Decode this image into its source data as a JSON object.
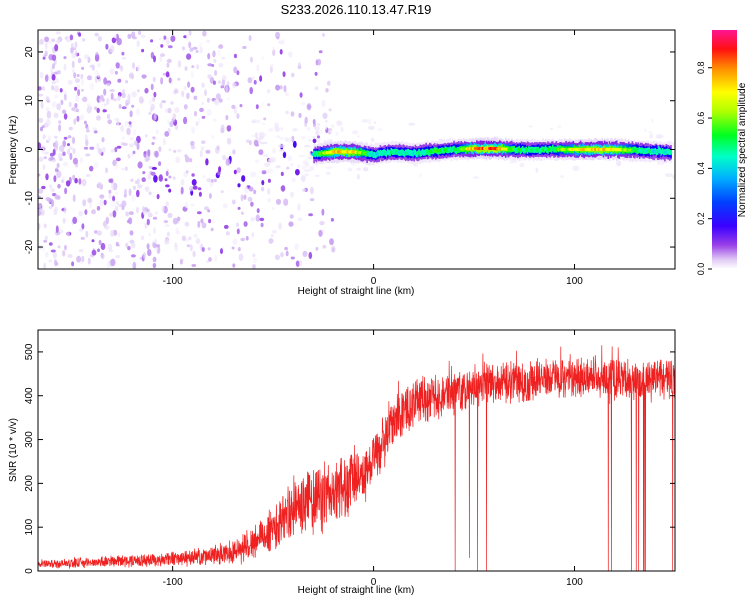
{
  "title": "S233.2026.110.13.47.R19",
  "chart_data": [
    {
      "type": "heatmap",
      "xlabel": "Height of straight line (km)",
      "ylabel": "Frequency (Hz)",
      "xlim": [
        -167,
        150
      ],
      "ylim": [
        -24.5,
        24.5
      ],
      "x_ticks": [
        -100,
        0,
        100
      ],
      "y_ticks": [
        -20,
        -10,
        0,
        10,
        20
      ],
      "grid": false,
      "colorbar": {
        "label": "Normalized spectral amplitude",
        "range": [
          0,
          0.95
        ],
        "ticks": [
          0.0,
          0.2,
          0.4,
          0.6,
          0.8
        ],
        "colormap": [
          "#ffffff",
          "#dcc8f5",
          "#8a2be2",
          "#3b00ff",
          "#0000ff",
          "#00bfff",
          "#00ffc0",
          "#00ff00",
          "#c8ff00",
          "#ffff00",
          "#ff8c00",
          "#ff0000",
          "#ff1493"
        ]
      },
      "ridge": {
        "x": [
          -30,
          -20,
          -10,
          0,
          10,
          20,
          30,
          40,
          50,
          60,
          70,
          80,
          90,
          100,
          110,
          120,
          130,
          140,
          148
        ],
        "frequency": [
          -1.0,
          -0.5,
          -0.5,
          -1.0,
          -0.5,
          -0.8,
          -0.3,
          0.0,
          0.2,
          0.2,
          0.0,
          -0.1,
          0.0,
          0.0,
          0.0,
          0.0,
          -0.2,
          -0.4,
          -0.6
        ],
        "amplitude": [
          0.5,
          0.85,
          0.8,
          0.5,
          0.55,
          0.5,
          0.6,
          0.55,
          0.85,
          0.9,
          0.6,
          0.55,
          0.6,
          0.75,
          0.85,
          0.8,
          0.6,
          0.5,
          0.55
        ]
      }
    },
    {
      "type": "line",
      "xlabel": "Height of straight line (km)",
      "ylabel": "SNR (10 * v/v)",
      "xlim": [
        -167,
        150
      ],
      "ylim": [
        0,
        550
      ],
      "x_ticks": [
        -100,
        0,
        100
      ],
      "y_ticks": [
        0,
        100,
        200,
        300,
        400,
        500
      ],
      "grid": false,
      "series": [
        {
          "color": "#ee2020",
          "x": [
            -167,
            -150,
            -130,
            -110,
            -90,
            -80,
            -70,
            -60,
            -55,
            -50,
            -45,
            -40,
            -35,
            -30,
            -25,
            -20,
            -15,
            -10,
            -5,
            0,
            5,
            10,
            15,
            20,
            25,
            30,
            35,
            40,
            50,
            60,
            70,
            80,
            90,
            100,
            110,
            120,
            130,
            140,
            150
          ],
          "values": [
            15,
            18,
            22,
            25,
            30,
            35,
            45,
            65,
            80,
            100,
            120,
            140,
            150,
            160,
            170,
            180,
            190,
            205,
            225,
            260,
            295,
            340,
            360,
            375,
            385,
            395,
            405,
            410,
            420,
            430,
            430,
            435,
            440,
            440,
            445,
            440,
            430,
            440,
            440
          ],
          "noise_spread": [
            10,
            10,
            12,
            14,
            16,
            20,
            25,
            35,
            40,
            50,
            60,
            70,
            70,
            75,
            75,
            75,
            70,
            65,
            60,
            55,
            55,
            55,
            50,
            50,
            50,
            50,
            45,
            45,
            45,
            45,
            45,
            45,
            45,
            45,
            45,
            45,
            45,
            45,
            45
          ]
        }
      ]
    }
  ]
}
